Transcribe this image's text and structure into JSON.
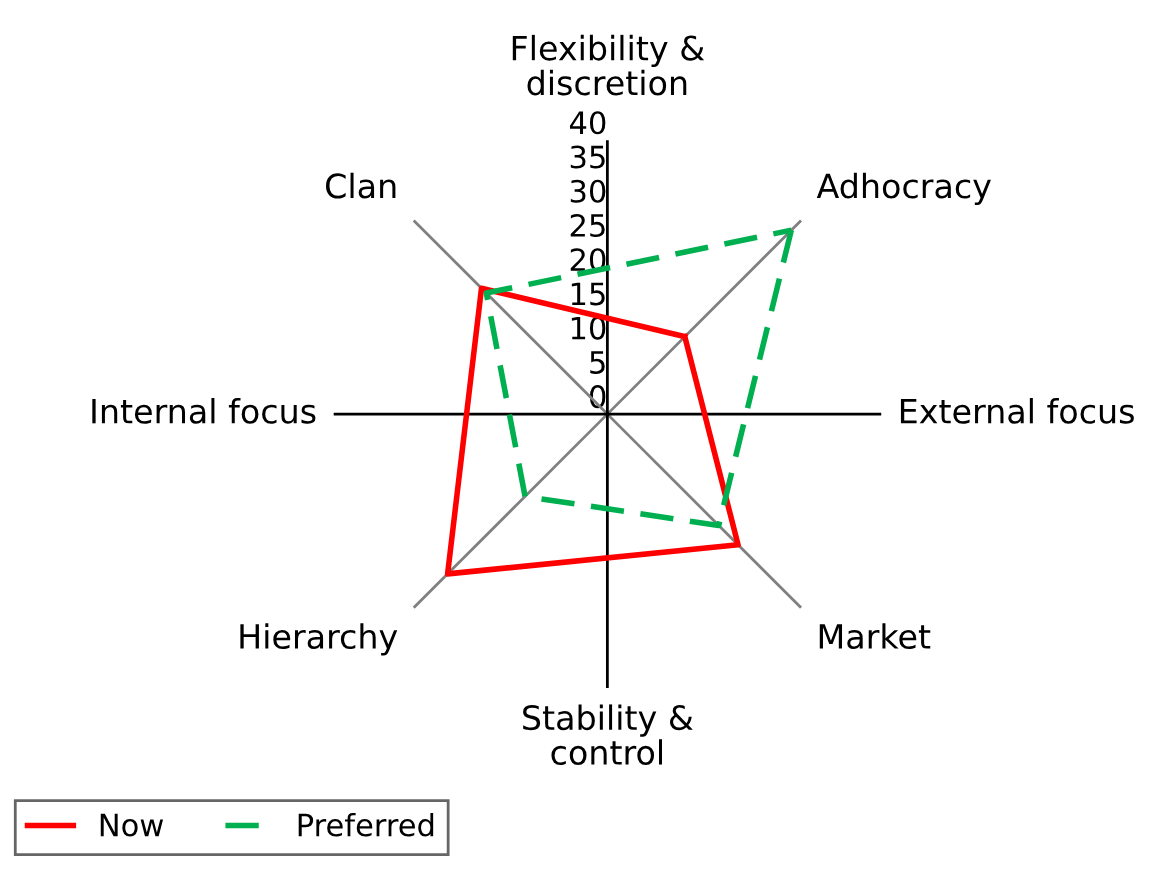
{
  "chart_data": {
    "type": "radar",
    "categories": [
      "Adhocracy",
      "Market",
      "Hierarchy",
      "Clan"
    ],
    "series": [
      {
        "name": "Now",
        "color": "#ff0000",
        "values": [
          16,
          27,
          33,
          26
        ],
        "line_style": "solid"
      },
      {
        "name": "Preferred",
        "color": "#00b050",
        "values": [
          38,
          23,
          17,
          25
        ],
        "line_style": "dashed"
      }
    ],
    "ylim": [
      0,
      40
    ],
    "yticks": [
      0,
      5,
      10,
      15,
      20,
      25,
      30,
      35,
      40
    ],
    "annotations": [
      "Flexibility &\ndiscretion",
      "External focus",
      "Stability &\ncontrol",
      "Internal focus"
    ],
    "legend": "bottom left",
    "marker": "none",
    "grid": false
  }
}
